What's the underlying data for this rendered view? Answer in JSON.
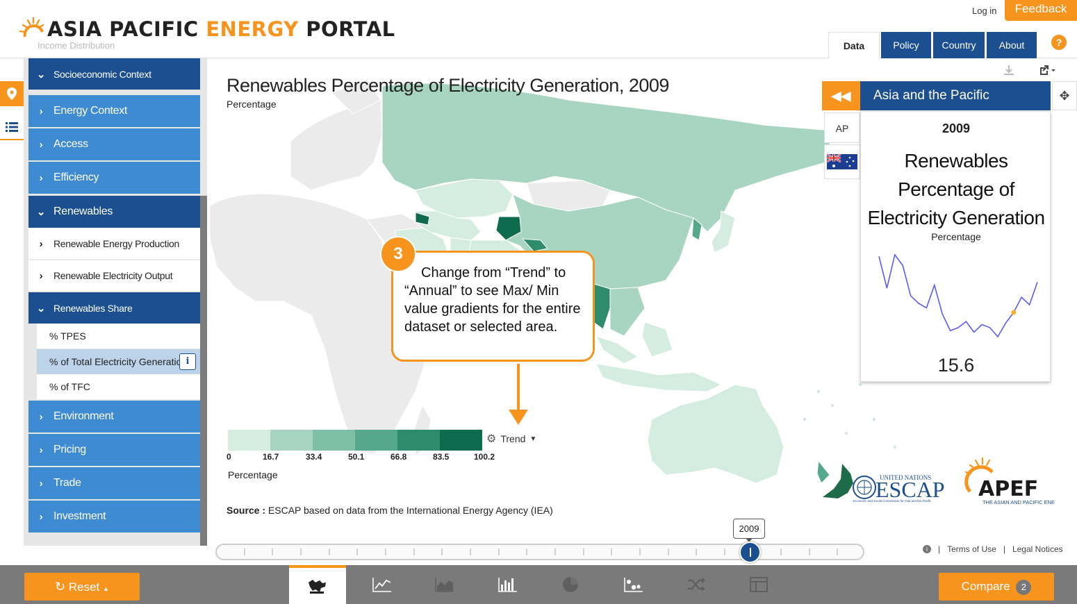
{
  "header": {
    "logo_text_1": "ASIA PACIFIC ",
    "logo_text_2": "ENERGY",
    "logo_text_3": " PORTAL",
    "login": "Log in",
    "feedback": "Feedback",
    "tabs": [
      {
        "label": "Data",
        "active": true
      },
      {
        "label": "Policy"
      },
      {
        "label": "Country"
      },
      {
        "label": "About"
      }
    ],
    "help": "?"
  },
  "sidebar": {
    "faded_item": "Income Distribution",
    "context_header": "Socioeconomic Context",
    "items": [
      {
        "label": "Energy Context"
      },
      {
        "label": "Access"
      },
      {
        "label": "Efficiency"
      },
      {
        "label": "Renewables"
      },
      {
        "label": "Renewable Energy Production"
      },
      {
        "label": "Renewable Electricity Output"
      },
      {
        "label": "Renewables Share"
      },
      {
        "label": "% TPES"
      },
      {
        "label": "% of Total Electricity Generation"
      },
      {
        "label": "% of TFC"
      },
      {
        "label": "Environment"
      },
      {
        "label": "Pricing"
      },
      {
        "label": "Trade"
      },
      {
        "label": "Investment"
      }
    ],
    "info": "i"
  },
  "map": {
    "title": "Renewables Percentage of Electricity Generation, 2009",
    "subtitle": "Percentage",
    "legend": {
      "colors": [
        "#d5ede1",
        "#a8d5c2",
        "#7ebfa7",
        "#55a88b",
        "#2e8b6c",
        "#0e6b4e"
      ],
      "ticks": [
        "0",
        "16.7",
        "33.4",
        "50.1",
        "66.8",
        "83.5",
        "100.2"
      ],
      "unit": "Percentage"
    },
    "trend_label": "Trend",
    "source_label": "Source :",
    "source_text": "ESCAP based on data from the International Energy Agency (IEA)"
  },
  "callout": {
    "number": "3",
    "text": "Change from “Trend” to “Annual” to see Max/ Min value gradients for the entire dataset or selected area."
  },
  "panel": {
    "region": "Asia and the Pacific",
    "tab_ap": "AP",
    "year": "2009",
    "indicator": "Renewables Percentage of Electricity Generation",
    "unit": "Percentage",
    "value": "15.6",
    "sparkline": [
      18.3,
      16.2,
      18.4,
      17.7,
      15.7,
      15.2,
      14.9,
      16.4,
      14.5,
      13.4,
      13.6,
      14.0,
      13.3,
      13.8,
      13.6,
      13.0,
      13.9,
      14.6,
      15.6,
      15.1,
      16.6
    ]
  },
  "logos": {
    "escap_top": "UNITED NATIONS",
    "escap": "ESCAP",
    "escap_sub": "Economic and Social Commission for Asia and the Pacific",
    "apef": "APEF",
    "apef_sub": "THE ASIAN AND PACIFIC ENERGY FORUM"
  },
  "timeline": {
    "year": "2009",
    "terms": "Terms of Use",
    "legal": "Legal Notices",
    "sep": "|"
  },
  "bottom": {
    "reset": "Reset",
    "compare": "Compare",
    "compare_count": "2",
    "views": [
      "map-view-icon",
      "line-chart-icon",
      "area-chart-icon",
      "bar-chart-icon",
      "pie-chart-icon",
      "scatter-chart-icon",
      "shuffle-icon",
      "table-icon"
    ]
  }
}
